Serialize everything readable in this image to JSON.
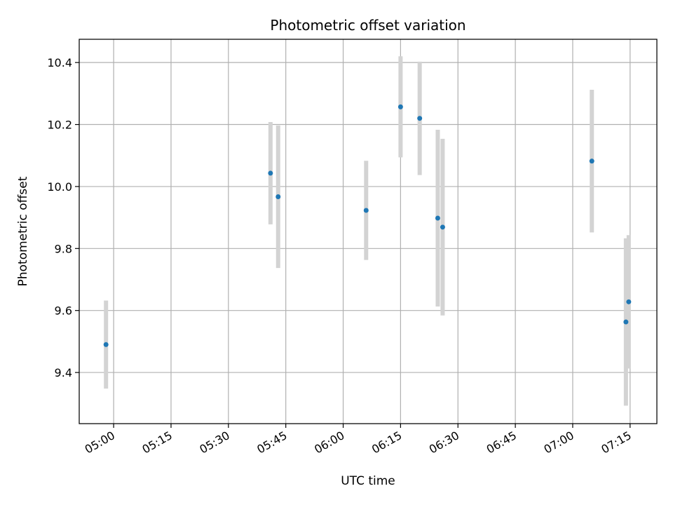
{
  "chart_data": {
    "type": "scatter",
    "title": "Photometric offset variation",
    "xlabel": "UTC time",
    "ylabel": "Photometric offset",
    "x_ticks": [
      "05:00",
      "05:15",
      "05:30",
      "05:45",
      "06:00",
      "06:15",
      "06:30",
      "06:45",
      "07:00",
      "07:15"
    ],
    "y_ticks": [
      "9.4",
      "9.6",
      "9.8",
      "10.0",
      "10.2",
      "10.4"
    ],
    "xlim": [
      "04:51",
      "07:22"
    ],
    "ylim": [
      9.235,
      10.475
    ],
    "grid": true,
    "marker_color": "#1f77b4",
    "errorbar_color": "#d3d3d3",
    "points": [
      {
        "x": "04:58",
        "y": 9.49,
        "yerr": 0.142
      },
      {
        "x": "05:41",
        "y": 10.043,
        "yerr": 0.165
      },
      {
        "x": "05:43",
        "y": 9.967,
        "yerr": 0.23
      },
      {
        "x": "06:06",
        "y": 9.923,
        "yerr": 0.16
      },
      {
        "x": "06:15",
        "y": 10.257,
        "yerr": 0.163
      },
      {
        "x": "06:20",
        "y": 10.22,
        "yerr": 0.183
      },
      {
        "x": "06:25",
        "y": 9.898,
        "yerr": 0.285
      },
      {
        "x": "06:26",
        "y": 9.869,
        "yerr": 0.285
      },
      {
        "x": "07:05",
        "y": 10.082,
        "yerr": 0.23
      },
      {
        "x": "07:14",
        "y": 9.563,
        "yerr": 0.27
      },
      {
        "x": "07:14",
        "y": 9.628,
        "yerr": 0.215
      }
    ]
  }
}
